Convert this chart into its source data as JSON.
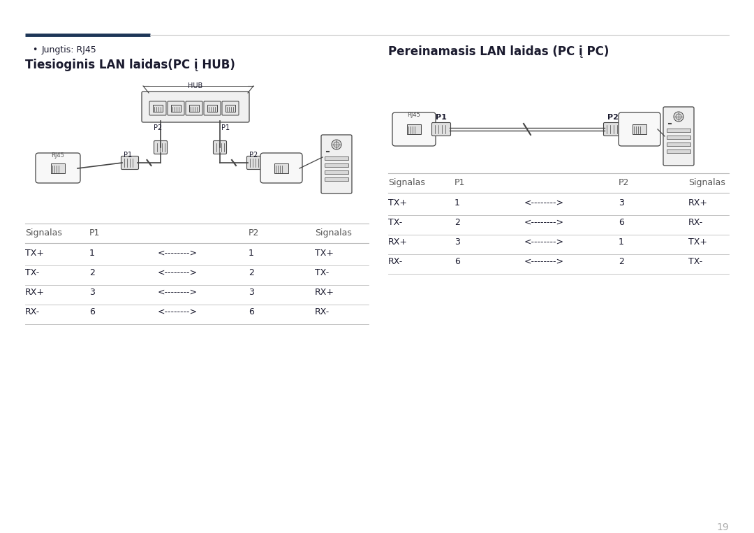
{
  "bg_color": "#ffffff",
  "page_number": "19",
  "top_line_dark_color": "#1d3557",
  "top_line_light_color": "#cccccc",
  "text_color": "#1a1a2e",
  "gray_text": "#555555",
  "table_line_color": "#bbbbbb",
  "diagram_edge": "#444444",
  "diagram_fill": "#f2f2f2",
  "diagram_fill2": "#e0e0e0",
  "bullet_text": "Jungtis: RJ45",
  "left_title": "Tiesioginis LAN laidas(PC į HUB)",
  "right_title": "Pereinamasis LAN laidas (PC į PC)",
  "left_table_header": [
    "Signalas",
    "P1",
    "",
    "P2",
    "Signalas"
  ],
  "left_table_rows": [
    [
      "TX+",
      "1",
      "<-------->",
      "1",
      "TX+"
    ],
    [
      "TX-",
      "2",
      "<-------->",
      "2",
      "TX-"
    ],
    [
      "RX+",
      "3",
      "<-------->",
      "3",
      "RX+"
    ],
    [
      "RX-",
      "6",
      "<-------->",
      "6",
      "RX-"
    ]
  ],
  "right_table_header": [
    "Signalas",
    "P1",
    "",
    "P2",
    "Signalas"
  ],
  "right_table_rows": [
    [
      "TX+",
      "1",
      "<-------->",
      "3",
      "RX+"
    ],
    [
      "TX-",
      "2",
      "<-------->",
      "6",
      "RX-"
    ],
    [
      "RX+",
      "3",
      "<-------->",
      "1",
      "TX+"
    ],
    [
      "RX-",
      "6",
      "<-------->",
      "2",
      "TX-"
    ]
  ],
  "title_fontsize": 12,
  "body_fontsize": 9,
  "header_fontsize": 9,
  "small_fontsize": 7
}
